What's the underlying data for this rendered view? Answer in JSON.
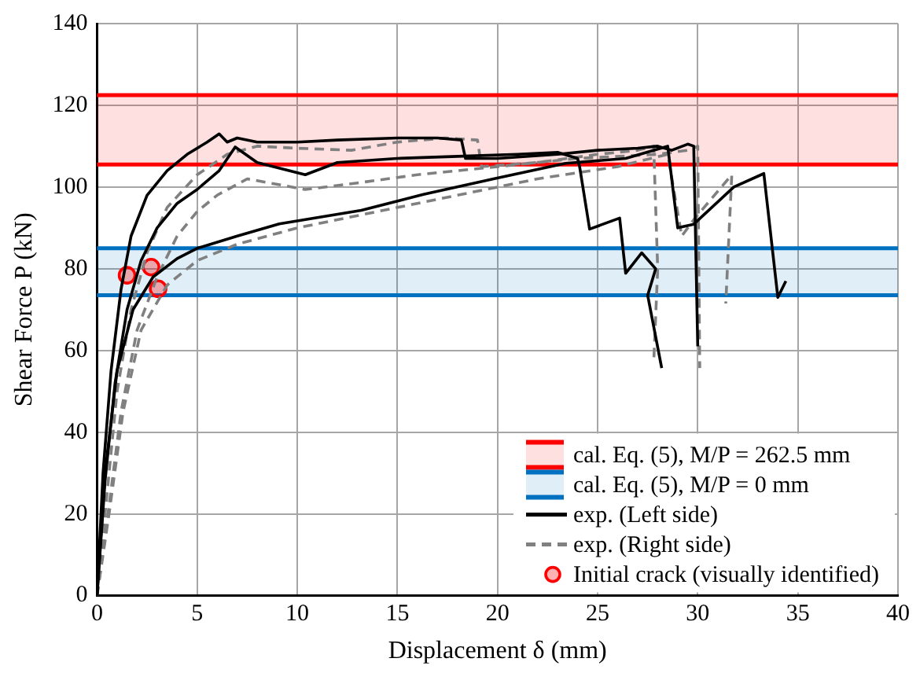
{
  "chart_data": {
    "type": "line",
    "xlabel": "Displacement δ (mm)",
    "ylabel": "Shear Force P (kN)",
    "xlim": [
      0,
      40
    ],
    "ylim": [
      0,
      140
    ],
    "xticks": [
      0,
      5,
      10,
      15,
      20,
      25,
      30,
      35,
      40
    ],
    "yticks": [
      0,
      20,
      40,
      60,
      80,
      100,
      120,
      140
    ],
    "grid": true,
    "legend": "bottom right",
    "bands": [
      {
        "axis": "y",
        "from": 105.5,
        "to": 122.5,
        "label": "cal. Eq. (5), M/P = 262.5 mm",
        "color": "#ff0000"
      },
      {
        "axis": "y",
        "from": 73.5,
        "to": 85,
        "label": "cal. Eq. (5), M/P = 0 mm",
        "color": "#0070c0"
      }
    ],
    "ref_lines": [
      {
        "axis": "y",
        "value": 122.5,
        "color": "#ff0000"
      },
      {
        "axis": "y",
        "value": 105.5,
        "color": "#ff0000"
      },
      {
        "axis": "y",
        "value": 85,
        "color": "#0070c0"
      },
      {
        "axis": "y",
        "value": 73.5,
        "color": "#0070c0"
      }
    ],
    "series": [
      {
        "name": "exp. (Left side)",
        "color": "#000000",
        "line_style": "solid",
        "x": [
          0,
          0.3,
          0.7,
          1.2,
          1.7,
          2.5,
          3.5,
          4.5,
          5.5,
          6.1,
          6.5,
          7,
          8,
          10,
          12,
          15,
          17,
          18.2,
          18.4,
          20,
          23,
          25,
          27,
          28,
          28.7,
          29.5,
          29.8,
          30
        ],
        "values": [
          0,
          30,
          55,
          75,
          88,
          98,
          104,
          108,
          111,
          113,
          111,
          112,
          111,
          111,
          111.5,
          112,
          112,
          111.5,
          107,
          107,
          108,
          109,
          109.5,
          110,
          109,
          110.5,
          110,
          61
        ]
      },
      {
        "color": "#000000",
        "line_style": "solid",
        "x": [
          0,
          0.4,
          0.9,
          1.5,
          2.2,
          3,
          4,
          5,
          6.1,
          6.9,
          8,
          10.4,
          12,
          15,
          18,
          21,
          23,
          24,
          24.1,
          24.6,
          26.1,
          26.4,
          27.2,
          27.9,
          27.5,
          28.2
        ],
        "values": [
          0,
          28,
          52,
          70,
          82,
          90,
          96,
          99.4,
          104,
          109.8,
          106,
          103,
          106,
          107,
          107.5,
          108,
          108.5,
          107,
          105,
          89.7,
          92.4,
          78.9,
          83.9,
          80,
          73.5,
          55.7
        ]
      },
      {
        "color": "#000000",
        "line_style": "solid",
        "x": [
          0,
          0.4,
          1,
          1.8,
          2.8,
          4,
          5,
          7,
          9.1,
          13.2,
          16.3,
          19.8,
          23.4,
          26.4,
          28.5,
          29,
          29.8,
          31.8,
          33.3,
          34,
          34.4
        ],
        "values": [
          0,
          30,
          55,
          70,
          78,
          82.5,
          85,
          88,
          91,
          94.3,
          98.2,
          102,
          105.8,
          107,
          110,
          90,
          90.9,
          100,
          103.3,
          73,
          77
        ]
      },
      {
        "name": "exp. (Right side)",
        "color": "#808080",
        "line_style": "dashed",
        "x": [
          0,
          0.5,
          1,
          1.7,
          2.5,
          3.5,
          5,
          6.5,
          8,
          10,
          12.7,
          15,
          17.4,
          19,
          19.2,
          22,
          25,
          27,
          27.8,
          28,
          27.8
        ],
        "values": [
          0,
          25,
          50,
          70,
          84,
          95,
          103,
          108,
          110,
          109.5,
          109,
          111,
          112,
          111.5,
          105,
          106,
          108,
          109,
          110,
          80,
          57
        ]
      },
      {
        "color": "#808080",
        "line_style": "dashed",
        "x": [
          0,
          0.6,
          1.2,
          2,
          3,
          4,
          5,
          6,
          7.5,
          10.4,
          13,
          16,
          20,
          24,
          28,
          29.5,
          30,
          30.1
        ],
        "values": [
          0,
          22,
          45,
          65,
          78,
          88,
          94,
          98,
          102,
          99.4,
          101,
          103,
          105,
          107,
          108,
          109,
          110,
          55.7
        ]
      },
      {
        "color": "#808080",
        "line_style": "dashed",
        "x": [
          0,
          0.6,
          1.3,
          2.2,
          3.5,
          5,
          7,
          10,
          14,
          18,
          22,
          26,
          28.5,
          29.2,
          29.8,
          31.7,
          31.4
        ],
        "values": [
          0,
          20,
          45,
          65,
          76,
          82,
          86,
          90,
          94,
          98,
          102,
          105,
          108,
          88,
          92,
          103,
          71.5
        ]
      },
      {
        "name": "Initial crack (visually identified)",
        "type": "scatter",
        "color": "#ff0000",
        "marker": "circle",
        "x": [
          1.5,
          2.7,
          3.05
        ],
        "values": [
          78.4,
          80.4,
          75.1
        ]
      }
    ]
  }
}
